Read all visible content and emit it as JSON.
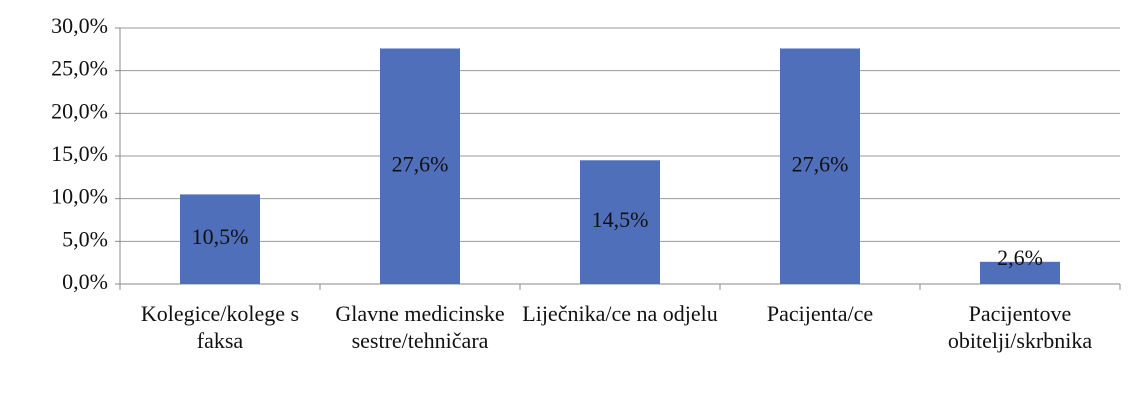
{
  "chart_data": {
    "type": "bar",
    "categories": [
      "Kolegice/kolege s faksa",
      "Glavne medicinske sestre/tehničara",
      "Liječnika/ce na odjelu",
      "Pacijenta/ce",
      "Pacijentove obitelji/skrbnika"
    ],
    "values": [
      10.5,
      27.6,
      14.5,
      27.6,
      2.6
    ],
    "value_labels": [
      "10,5%",
      "27,6%",
      "14,5%",
      "27,6%",
      "2,6%"
    ],
    "color": "#4f6fba",
    "ylim": [
      0,
      30
    ],
    "yticks": [
      {
        "value": 0,
        "label": "0,0%"
      },
      {
        "value": 5,
        "label": "5,0%"
      },
      {
        "value": 10,
        "label": "10,0%"
      },
      {
        "value": 15,
        "label": "15,0%"
      },
      {
        "value": 20,
        "label": "20,0%"
      },
      {
        "value": 25,
        "label": "25,0%"
      },
      {
        "value": 30,
        "label": "30,0%"
      }
    ],
    "grid": true
  }
}
